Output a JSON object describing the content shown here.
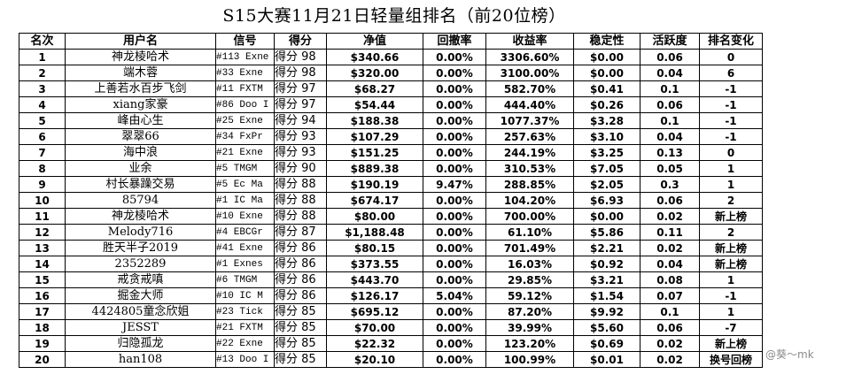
{
  "title": "S15大赛11月21日轻量组排名（前20位榜）",
  "headers": [
    "名次",
    "用户名",
    "信号",
    "得分",
    "净值",
    "回撤率",
    "收益率",
    "稳定性",
    "活跃度",
    "排名变化"
  ],
  "rows": [
    {
      "rank": "1",
      "user": "神龙棱哈术",
      "signal": "#113 Exne",
      "score": "得分 98",
      "nav": "$340.66",
      "drawdown": "0.00%",
      "return": "3306.60%",
      "stability": "$0.00",
      "activity": "0.06",
      "change": "0"
    },
    {
      "rank": "2",
      "user": "端木蓉",
      "signal": "#33 Exne",
      "score": "得分 98",
      "nav": "$320.00",
      "drawdown": "0.00%",
      "return": "3100.00%",
      "stability": "$0.00",
      "activity": "0.04",
      "change": "6"
    },
    {
      "rank": "3",
      "user": "上善若水百步飞剑",
      "signal": "#11 FXTM",
      "score": "得分 97",
      "nav": "$68.27",
      "drawdown": "0.00%",
      "return": "582.70%",
      "stability": "$0.41",
      "activity": "0.1",
      "change": "-1"
    },
    {
      "rank": "4",
      "user": "xiang家豪",
      "signal": "#86 Doo I",
      "score": "得分 97",
      "nav": "$54.44",
      "drawdown": "0.00%",
      "return": "444.40%",
      "stability": "$0.26",
      "activity": "0.06",
      "change": "-1"
    },
    {
      "rank": "5",
      "user": "峰由心生",
      "signal": "#25 Exne",
      "score": "得分 94",
      "nav": "$188.38",
      "drawdown": "0.00%",
      "return": "1077.37%",
      "stability": "$3.28",
      "activity": "0.1",
      "change": "-1"
    },
    {
      "rank": "6",
      "user": "翠翠66",
      "signal": "#34 FxPr",
      "score": "得分 93",
      "nav": "$107.29",
      "drawdown": "0.00%",
      "return": "257.63%",
      "stability": "$3.10",
      "activity": "0.04",
      "change": "-1"
    },
    {
      "rank": "7",
      "user": "海中浪",
      "signal": "#21 Exne",
      "score": "得分 93",
      "nav": "$151.25",
      "drawdown": "0.00%",
      "return": "244.19%",
      "stability": "$3.25",
      "activity": "0.13",
      "change": "0"
    },
    {
      "rank": "8",
      "user": "业余",
      "signal": "#5 TMGM",
      "score": "得分 90",
      "nav": "$889.38",
      "drawdown": "0.00%",
      "return": "310.53%",
      "stability": "$7.05",
      "activity": "0.05",
      "change": "1"
    },
    {
      "rank": "9",
      "user": "村长暴躁交易",
      "signal": "#5 Ec Ma",
      "score": "得分 88",
      "nav": "$190.19",
      "drawdown": "9.47%",
      "return": "288.85%",
      "stability": "$2.05",
      "activity": "0.3",
      "change": "1"
    },
    {
      "rank": "10",
      "user": "85794",
      "signal": "#1 IC Ma",
      "score": "得分 88",
      "nav": "$674.17",
      "drawdown": "0.00%",
      "return": "104.20%",
      "stability": "$6.93",
      "activity": "0.06",
      "change": "2"
    },
    {
      "rank": "11",
      "user": "神龙棱哈术",
      "signal": "#10 Exne",
      "score": "得分 88",
      "nav": "$80.00",
      "drawdown": "0.00%",
      "return": "700.00%",
      "stability": "$0.00",
      "activity": "0.02",
      "change": "新上榜"
    },
    {
      "rank": "12",
      "user": "Melody716",
      "signal": "#4 EBCGr",
      "score": "得分 87",
      "nav": "$1,188.48",
      "drawdown": "0.00%",
      "return": "61.10%",
      "stability": "$5.86",
      "activity": "0.11",
      "change": "2"
    },
    {
      "rank": "13",
      "user": "胜天半子2019",
      "signal": "#41 Exne",
      "score": "得分 86",
      "nav": "$80.15",
      "drawdown": "0.00%",
      "return": "701.49%",
      "stability": "$2.21",
      "activity": "0.02",
      "change": "新上榜"
    },
    {
      "rank": "14",
      "user": "2352289",
      "signal": "#1 Exnes",
      "score": "得分 86",
      "nav": "$373.55",
      "drawdown": "0.00%",
      "return": "16.03%",
      "stability": "$0.92",
      "activity": "0.04",
      "change": "新上榜"
    },
    {
      "rank": "15",
      "user": "戒贪戒嗔",
      "signal": "#6 TMGM",
      "score": "得分 86",
      "nav": "$443.70",
      "drawdown": "0.00%",
      "return": "29.85%",
      "stability": "$3.21",
      "activity": "0.08",
      "change": "1"
    },
    {
      "rank": "16",
      "user": "掘金大师",
      "signal": "#10 IC M",
      "score": "得分 86",
      "nav": "$126.17",
      "drawdown": "5.04%",
      "return": "59.12%",
      "stability": "$1.54",
      "activity": "0.07",
      "change": "-1"
    },
    {
      "rank": "17",
      "user": "4424805童念欣姐",
      "signal": "#23 Tick",
      "score": "得分 85",
      "nav": "$695.12",
      "drawdown": "0.00%",
      "return": "87.20%",
      "stability": "$9.92",
      "activity": "0.1",
      "change": "1"
    },
    {
      "rank": "18",
      "user": "JESST",
      "signal": "#21 FXTM",
      "score": "得分 85",
      "nav": "$70.00",
      "drawdown": "0.00%",
      "return": "39.99%",
      "stability": "$5.60",
      "activity": "0.06",
      "change": "-7"
    },
    {
      "rank": "19",
      "user": "归隐孤龙",
      "signal": "#22 Exne",
      "score": "得分 85",
      "nav": "$22.32",
      "drawdown": "0.00%",
      "return": "123.20%",
      "stability": "$0.69",
      "activity": "0.02",
      "change": "新上榜"
    },
    {
      "rank": "20",
      "user": "han108",
      "signal": "#13 Doo I",
      "score": "得分 85",
      "nav": "$20.10",
      "drawdown": "0.00%",
      "return": "100.99%",
      "stability": "$0.01",
      "activity": "0.02",
      "change": "换号回榜"
    }
  ],
  "watermark": "@葵～mk"
}
